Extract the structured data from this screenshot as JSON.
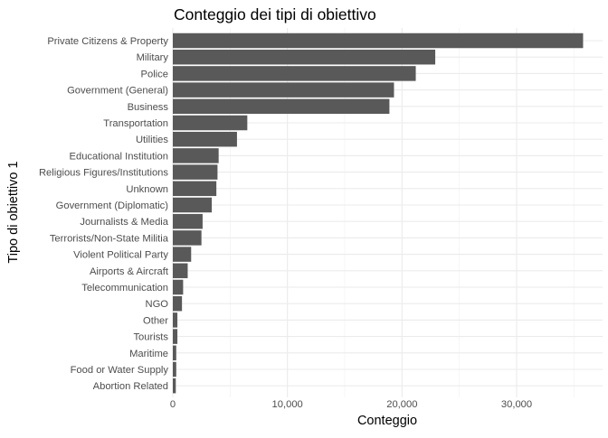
{
  "chart_data": {
    "type": "bar",
    "orientation": "horizontal",
    "title": "Conteggio dei tipi di obiettivo",
    "xlabel": "Conteggio",
    "ylabel": "Tipo di obiettivo 1",
    "xlim": [
      0,
      37500
    ],
    "x_ticks": [
      0,
      10000,
      20000,
      30000
    ],
    "x_tick_labels": [
      "0",
      "10,000",
      "20,000",
      "30,000"
    ],
    "grid": true,
    "legend": "none",
    "bar_color": "#595959",
    "categories": [
      "Private Citizens & Property",
      "Military",
      "Police",
      "Government (General)",
      "Business",
      "Transportation",
      "Utilities",
      "Educational Institution",
      "Religious Figures/Institutions",
      "Unknown",
      "Government (Diplomatic)",
      "Journalists & Media",
      "Terrorists/Non-State Militia",
      "Violent Political Party",
      "Airports & Aircraft",
      "Telecommunication",
      "NGO",
      "Other",
      "Tourists",
      "Maritime",
      "Food or Water Supply",
      "Abortion Related"
    ],
    "values": [
      35800,
      22900,
      21200,
      19300,
      18900,
      6500,
      5600,
      4000,
      3900,
      3800,
      3400,
      2600,
      2500,
      1600,
      1300,
      900,
      800,
      400,
      400,
      300,
      300,
      260
    ]
  }
}
